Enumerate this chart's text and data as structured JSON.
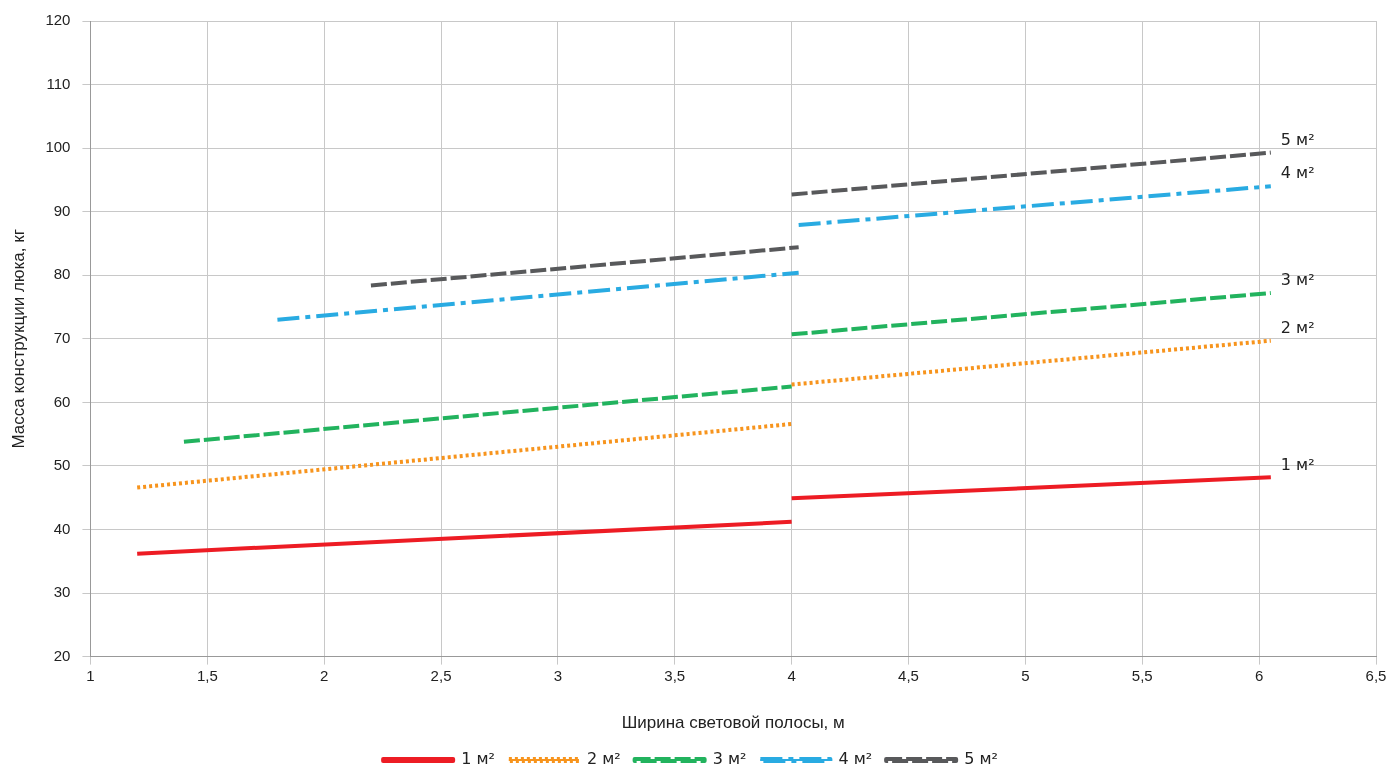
{
  "chart_data": {
    "type": "line",
    "xlabel": "Ширина световой полосы, м",
    "ylabel": "Масса конструкции люка, кг",
    "xlim": [
      1,
      6.5
    ],
    "xticks": [
      1,
      {
        "value": 1.5,
        "label": "1,5"
      },
      2,
      {
        "value": 2.5,
        "label": "2,5"
      },
      3,
      {
        "value": 3.5,
        "label": "3,5"
      },
      4,
      {
        "value": 4.5,
        "label": "4,5"
      },
      5,
      {
        "value": 5.5,
        "label": "5,5"
      },
      6,
      {
        "value": 6.5,
        "label": "6,5"
      }
    ],
    "ylim": [
      20,
      120
    ],
    "yticks": [
      20,
      30,
      40,
      50,
      60,
      70,
      80,
      90,
      100,
      110,
      120
    ],
    "grid": true,
    "legend": "bottom",
    "marker": "none",
    "series": [
      {
        "name": "1 м²",
        "color": "#ed1c24",
        "line_style": "solid",
        "x": [
          4,
          6.05
        ],
        "values": [
          44.9,
          48.2
        ]
      },
      {
        "name": "2 м²",
        "color": "#f7941d",
        "line_style": "dotted",
        "x": [
          4,
          6.05
        ],
        "values": [
          62.8,
          69.7
        ]
      },
      {
        "name": "3 м²",
        "color": "#22b35e",
        "line_style": "dashed",
        "x": [
          4,
          6.05
        ],
        "values": [
          70.7,
          77.2
        ]
      },
      {
        "name": "4 м²",
        "color": "#29abe2",
        "line_style": "dashdot",
        "x": [
          4.03,
          6.05
        ],
        "values": [
          87.9,
          94
        ]
      },
      {
        "name": "5 м²",
        "color": "#58595b",
        "line_style": "dashed",
        "x": [
          4,
          6.05
        ],
        "values": [
          92.7,
          99.3
        ]
      },
      {
        "color": "#ed1c24",
        "line_style": "solid",
        "x": [
          1.2,
          4
        ],
        "values": [
          36.2,
          41.2
        ]
      },
      {
        "color": "#f7941d",
        "line_style": "dotted",
        "x": [
          1.2,
          4
        ],
        "values": [
          46.6,
          56.6
        ]
      },
      {
        "color": "#22b35e",
        "line_style": "dashed",
        "x": [
          1.4,
          4
        ],
        "values": [
          53.8,
          62.5
        ]
      },
      {
        "color": "#29abe2",
        "line_style": "dashdot",
        "x": [
          1.8,
          4.03
        ],
        "values": [
          73,
          80.4
        ]
      },
      {
        "color": "#58595b",
        "line_style": "dashed",
        "x": [
          2.2,
          4.03
        ],
        "values": [
          78.4,
          84.4
        ]
      }
    ]
  }
}
